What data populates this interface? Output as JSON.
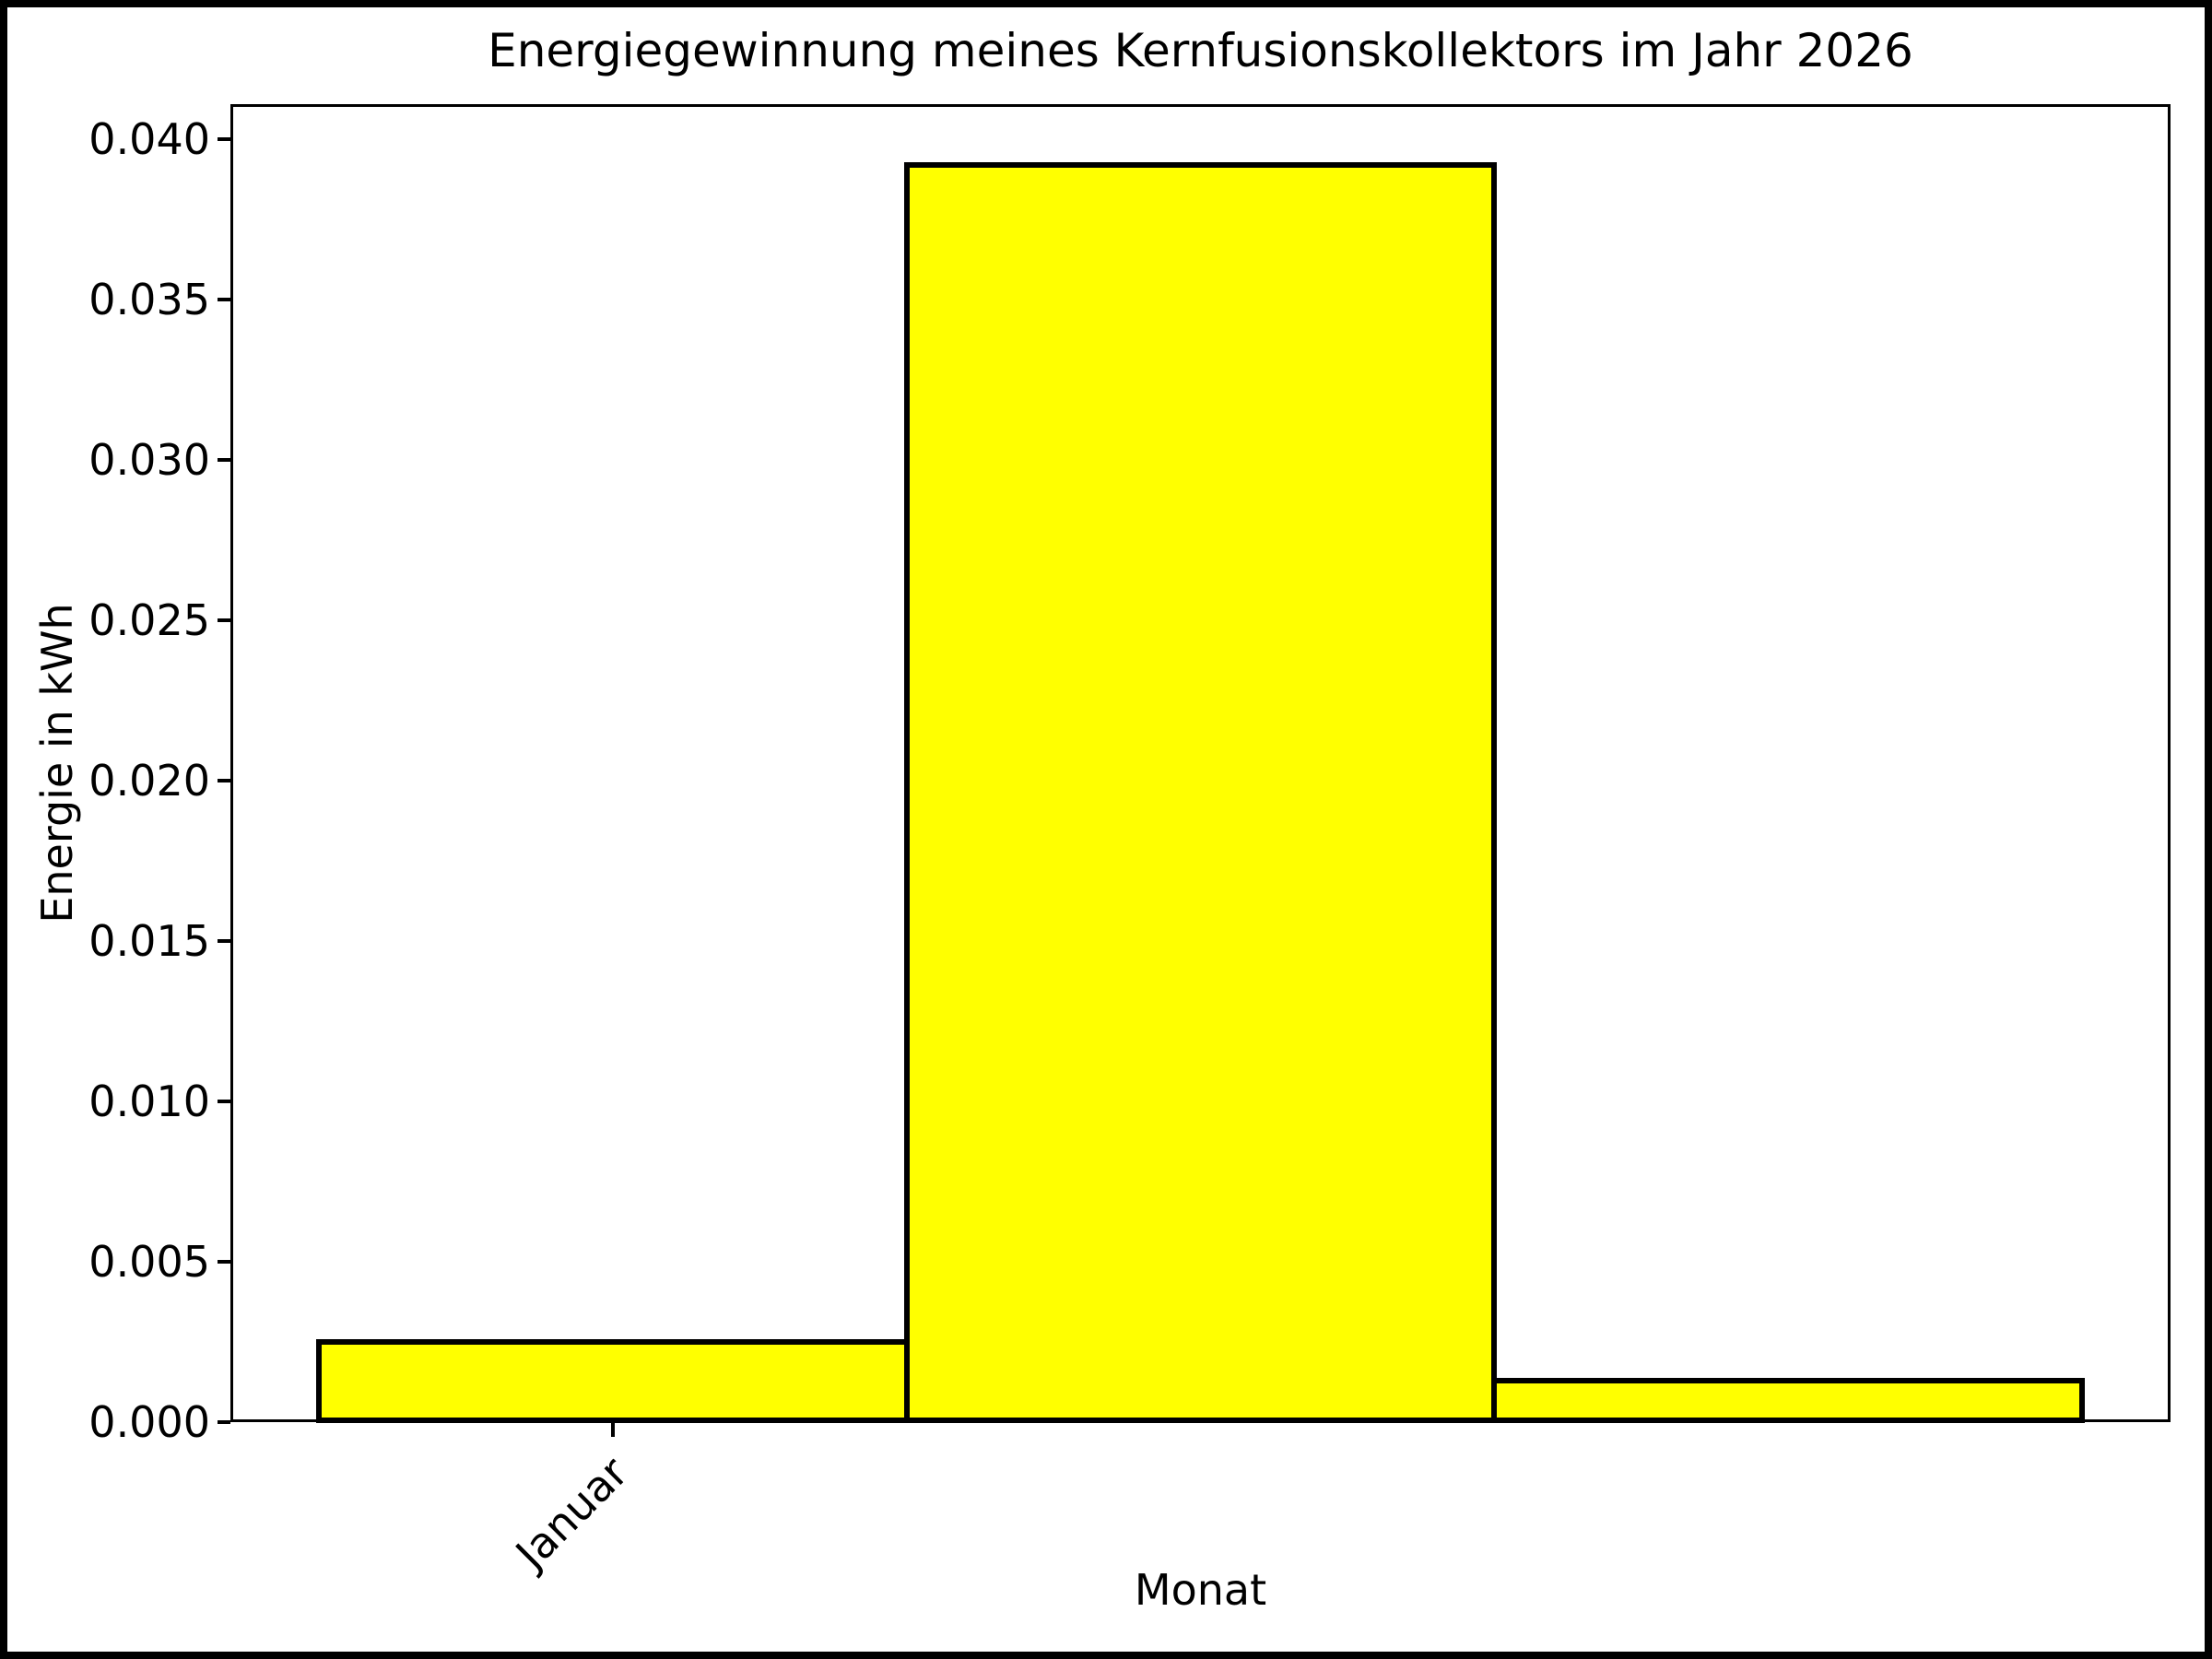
{
  "figure": {
    "background_color": "#ffffff",
    "frame_color": "#000000"
  },
  "chart_data": {
    "type": "bar",
    "title": "Energiegewinnung meines Kernfusionskollektors im Jahr 2026",
    "xlabel": "Monat",
    "ylabel": "Energie in kWh",
    "values": [
      0.0025,
      0.0392,
      0.0013
    ],
    "bar_positions": [
      0,
      1,
      2
    ],
    "bar_width": 1.0,
    "bar_color": "#ffff00",
    "bar_edge_color": "#000000",
    "xlim": [
      -0.65,
      2.65
    ],
    "ylim": [
      0,
      0.0411
    ],
    "yticks": [
      {
        "value": 0.0,
        "label": "0.000"
      },
      {
        "value": 0.005,
        "label": "0.005"
      },
      {
        "value": 0.01,
        "label": "0.010"
      },
      {
        "value": 0.015,
        "label": "0.015"
      },
      {
        "value": 0.02,
        "label": "0.020"
      },
      {
        "value": 0.025,
        "label": "0.025"
      },
      {
        "value": 0.03,
        "label": "0.030"
      },
      {
        "value": 0.035,
        "label": "0.035"
      },
      {
        "value": 0.04,
        "label": "0.040"
      }
    ],
    "xticks": [
      {
        "position": 0,
        "label": "Januar",
        "rotation_deg": 45
      }
    ],
    "grid": false,
    "legend": null
  }
}
